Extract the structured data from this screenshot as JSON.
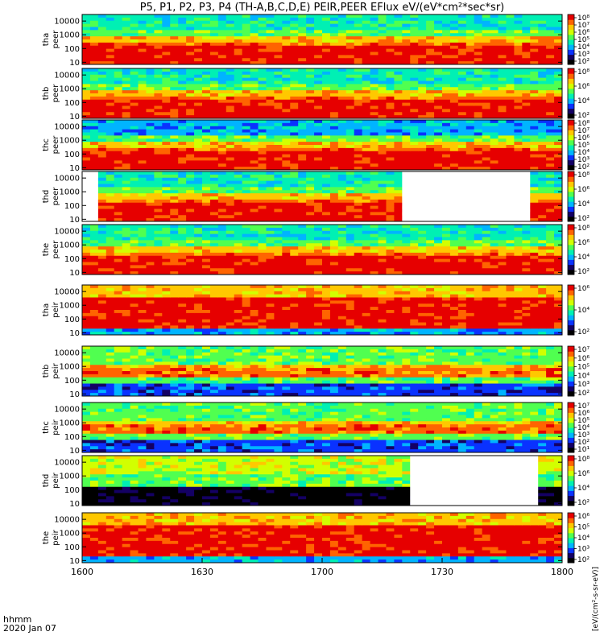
{
  "title": "P5, P1, P2, P3, P4 (TH-A,B,C,D,E) PEIR,PEER EFlux eV/(eV*cm²*sec*sr)",
  "x_axis": {
    "footer_line1": "hhmm",
    "footer_line2": "2020 Jan 07"
  },
  "colorbar_unit": "[eV/(cm²-s-sr-eV)]",
  "chart_data": {
    "type": "heatmap",
    "xlim": [
      "16:00",
      "18:00"
    ],
    "x_ticks": [
      "1600",
      "1630",
      "1700",
      "1730",
      "1800"
    ],
    "y_scale": "log",
    "ylim": [
      7,
      30000
    ],
    "y_ticks": [
      "10",
      "100",
      "1000",
      "10000"
    ],
    "panels": [
      {
        "label_probe": "tha",
        "label_kind": "peer",
        "colorbar_ticks": [
          "10²",
          "10³",
          "10⁴",
          "10⁵",
          "10⁶",
          "10⁷",
          "10⁸"
        ],
        "data_gaps": []
      },
      {
        "label_probe": "thb",
        "label_kind": "peer",
        "colorbar_ticks": [
          "10²",
          "10⁴",
          "10⁶",
          "10⁸"
        ],
        "data_gaps": []
      },
      {
        "label_probe": "thc",
        "label_kind": "peer",
        "colorbar_ticks": [
          "10²",
          "10³",
          "10⁴",
          "10⁵",
          "10⁶",
          "10⁷",
          "10⁸"
        ],
        "data_gaps": []
      },
      {
        "label_probe": "thd",
        "label_kind": "peer",
        "colorbar_ticks": [
          "10²",
          "10⁴",
          "10⁶",
          "10⁸"
        ],
        "data_gaps": [
          [
            "16:00",
            "16:04"
          ],
          [
            "17:20",
            "17:52"
          ]
        ]
      },
      {
        "label_probe": "the",
        "label_kind": "peer",
        "colorbar_ticks": [
          "10²",
          "10⁴",
          "10⁶",
          "10⁸"
        ],
        "data_gaps": []
      },
      {
        "label_probe": "tha",
        "label_kind": "peir",
        "colorbar_ticks": [
          "10²",
          "10⁴",
          "10⁶"
        ],
        "data_gaps": []
      },
      {
        "label_probe": "thb",
        "label_kind": "peir",
        "colorbar_ticks": [
          "10²",
          "10³",
          "10⁴",
          "10⁵",
          "10⁶",
          "10⁷"
        ],
        "data_gaps": []
      },
      {
        "label_probe": "thc",
        "label_kind": "peir",
        "colorbar_ticks": [
          "10¹",
          "10²",
          "10³",
          "10⁴",
          "10⁵",
          "10⁶",
          "10⁷"
        ],
        "data_gaps": []
      },
      {
        "label_probe": "thd",
        "label_kind": "peir",
        "colorbar_ticks": [
          "10²",
          "10⁴",
          "10⁶",
          "10⁸"
        ],
        "data_gaps": [
          [
            "17:22",
            "17:54"
          ]
        ]
      },
      {
        "label_probe": "the",
        "label_kind": "peir",
        "colorbar_ticks": [
          "10²",
          "10³",
          "10⁴",
          "10⁵",
          "10⁶"
        ],
        "data_gaps": []
      }
    ],
    "colorscale": [
      "#000000",
      "#140064",
      "#0a32ff",
      "#00b4ff",
      "#00f0b4",
      "#50ff50",
      "#d2ff00",
      "#ffc800",
      "#ff6400",
      "#e60000"
    ]
  }
}
